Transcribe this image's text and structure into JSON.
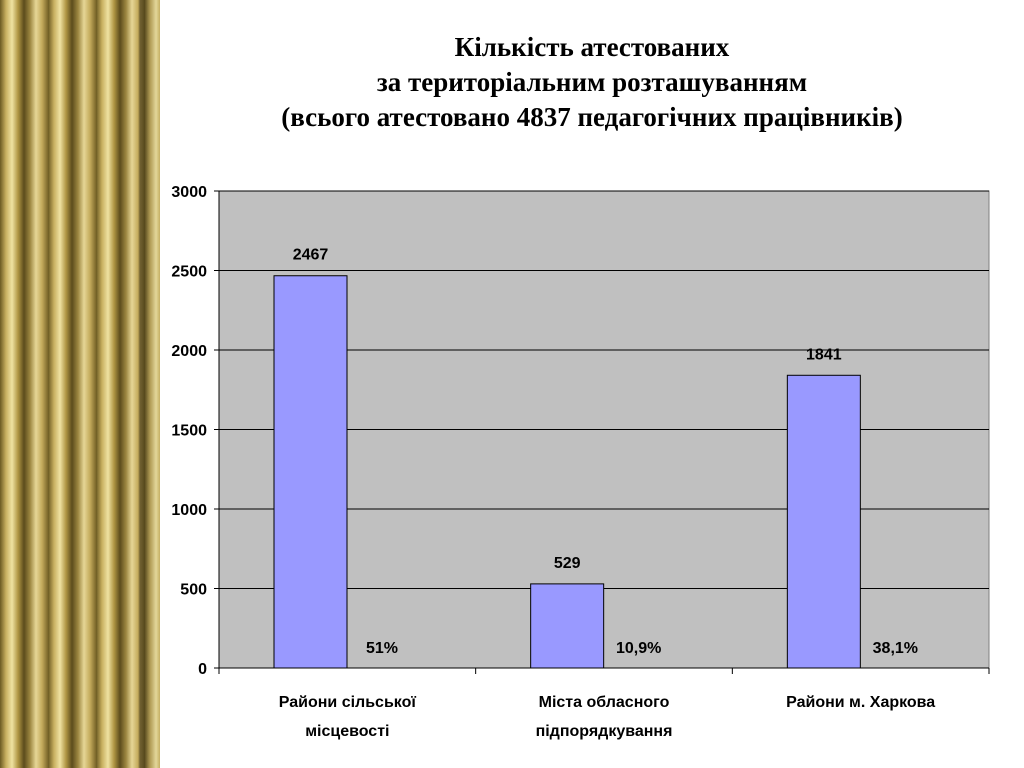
{
  "title_lines": [
    "Кількість атестованих",
    "за територіальним розташуванням",
    "(всього атестовано 4837 педагогічних працівників)"
  ],
  "colors": {
    "bar": "#9999ff",
    "plot_bg": "#c0c0c0",
    "gridline": "#000000"
  },
  "chart_data": {
    "type": "bar",
    "categories": [
      [
        "Райони сільської",
        "місцевості"
      ],
      [
        "Міста обласного",
        "підпорядкування"
      ],
      [
        "Райони м. Харкова"
      ]
    ],
    "values": [
      2467,
      529,
      1841
    ],
    "value_labels": [
      "2467",
      "529",
      "1841"
    ],
    "percent_labels": [
      "51%",
      "10,9%",
      "38,1%"
    ],
    "ylim": [
      0,
      3000
    ],
    "yticks": [
      0,
      500,
      1000,
      1500,
      2000,
      2500,
      3000
    ],
    "grid": true,
    "legend": "none"
  }
}
